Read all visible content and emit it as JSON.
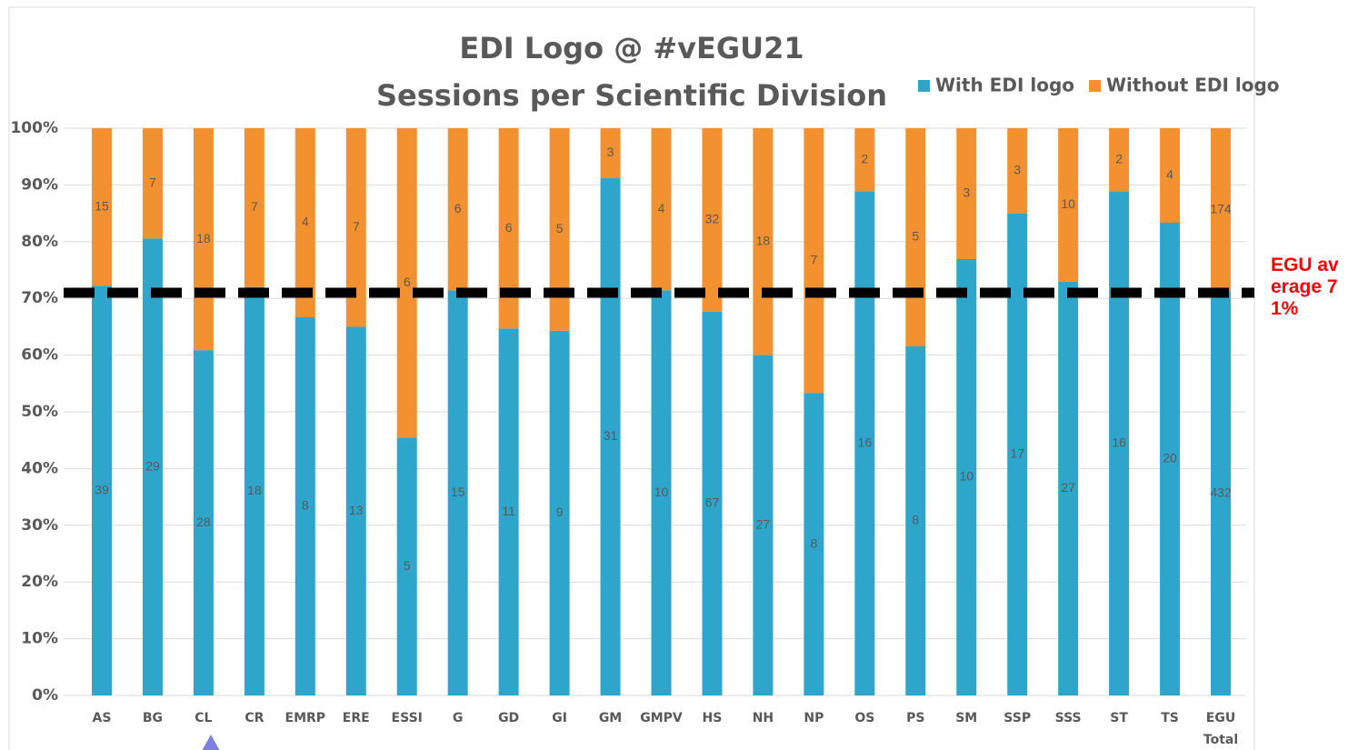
{
  "chart_data": {
    "type": "bar",
    "stacking": "percent",
    "title": "EDI Logo @ #vEGU21",
    "subtitle": "Sessions per Scientific Division",
    "categories": [
      "AS",
      "BG",
      "CL",
      "CR",
      "EMRP",
      "ERE",
      "ESSI",
      "G",
      "GD",
      "GI",
      "GM",
      "GMPV",
      "HS",
      "NH",
      "NP",
      "OS",
      "PS",
      "SM",
      "SSP",
      "SSS",
      "ST",
      "TS",
      "EGU Total"
    ],
    "series": [
      {
        "name": "With EDI logo",
        "color": "#2ea6cc",
        "values": [
          39,
          29,
          28,
          18,
          8,
          13,
          5,
          15,
          11,
          9,
          31,
          10,
          67,
          27,
          8,
          16,
          8,
          10,
          17,
          27,
          16,
          20,
          432
        ]
      },
      {
        "name": "Without EDI logo",
        "color": "#f39130",
        "values": [
          15,
          7,
          18,
          7,
          4,
          7,
          6,
          6,
          6,
          5,
          3,
          4,
          32,
          18,
          7,
          2,
          5,
          3,
          3,
          10,
          2,
          4,
          174
        ]
      }
    ],
    "ylim": [
      0,
      100
    ],
    "yticks": [
      {
        "value": 0,
        "label": "0%"
      },
      {
        "value": 10,
        "label": "10%"
      },
      {
        "value": 20,
        "label": "20%"
      },
      {
        "value": 30,
        "label": "30%"
      },
      {
        "value": 40,
        "label": "40%"
      },
      {
        "value": 50,
        "label": "50%"
      },
      {
        "value": 60,
        "label": "60%"
      },
      {
        "value": 70,
        "label": "70%"
      },
      {
        "value": 80,
        "label": "80%"
      },
      {
        "value": 90,
        "label": "90%"
      },
      {
        "value": 100,
        "label": "100%"
      }
    ],
    "grid": true,
    "legend": "top-right",
    "annotation": {
      "text": "EGU average 71%",
      "value": 71
    }
  }
}
